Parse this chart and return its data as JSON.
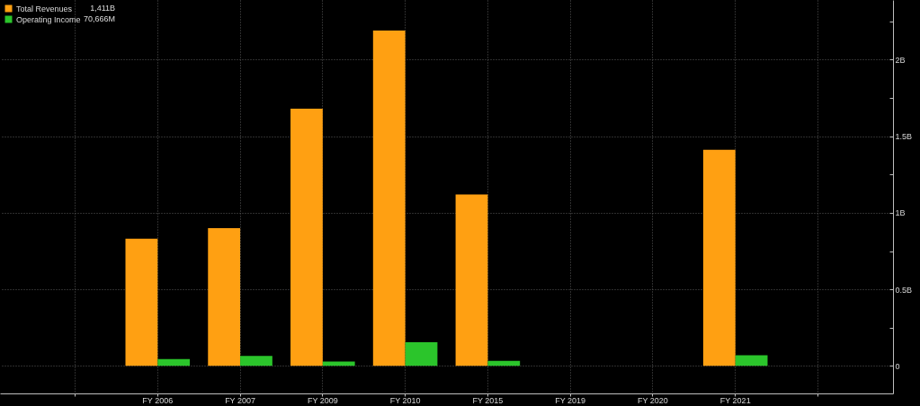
{
  "chart_data": {
    "type": "bar",
    "categories": [
      null,
      "FY 2006",
      "FY 2007",
      "FY 2009",
      "FY 2010",
      "FY 2015",
      "FY 2019",
      "FY 2020",
      "FY 2021",
      null
    ],
    "series": [
      {
        "name": "Total Revenues",
        "color": "#ffa012",
        "values": [
          null,
          0.83,
          0.9,
          1.68,
          2.19,
          1.12,
          null,
          null,
          1.411,
          null
        ]
      },
      {
        "name": "Operating Income",
        "color": "#2bc52b",
        "values": [
          null,
          0.045,
          0.065,
          0.028,
          0.155,
          0.032,
          null,
          null,
          0.07,
          null
        ]
      }
    ],
    "ylim": [
      -0.18,
      2.39
    ],
    "yticks": [
      0,
      {
        "value": 0.25,
        "label": null
      },
      {
        "value": 0.5,
        "label": "0.5B"
      },
      {
        "value": 0.75,
        "label": null
      },
      {
        "value": 1,
        "label": "1B"
      },
      {
        "value": 1.25,
        "label": null
      },
      {
        "value": 1.5,
        "label": "1.5B"
      },
      {
        "value": 1.75,
        "label": null
      },
      {
        "value": 2,
        "label": "2B"
      },
      {
        "value": 2.25,
        "label": null
      }
    ],
    "grid": true,
    "legend": "top left",
    "annotations": [
      "1,411B",
      "70,666M"
    ]
  }
}
